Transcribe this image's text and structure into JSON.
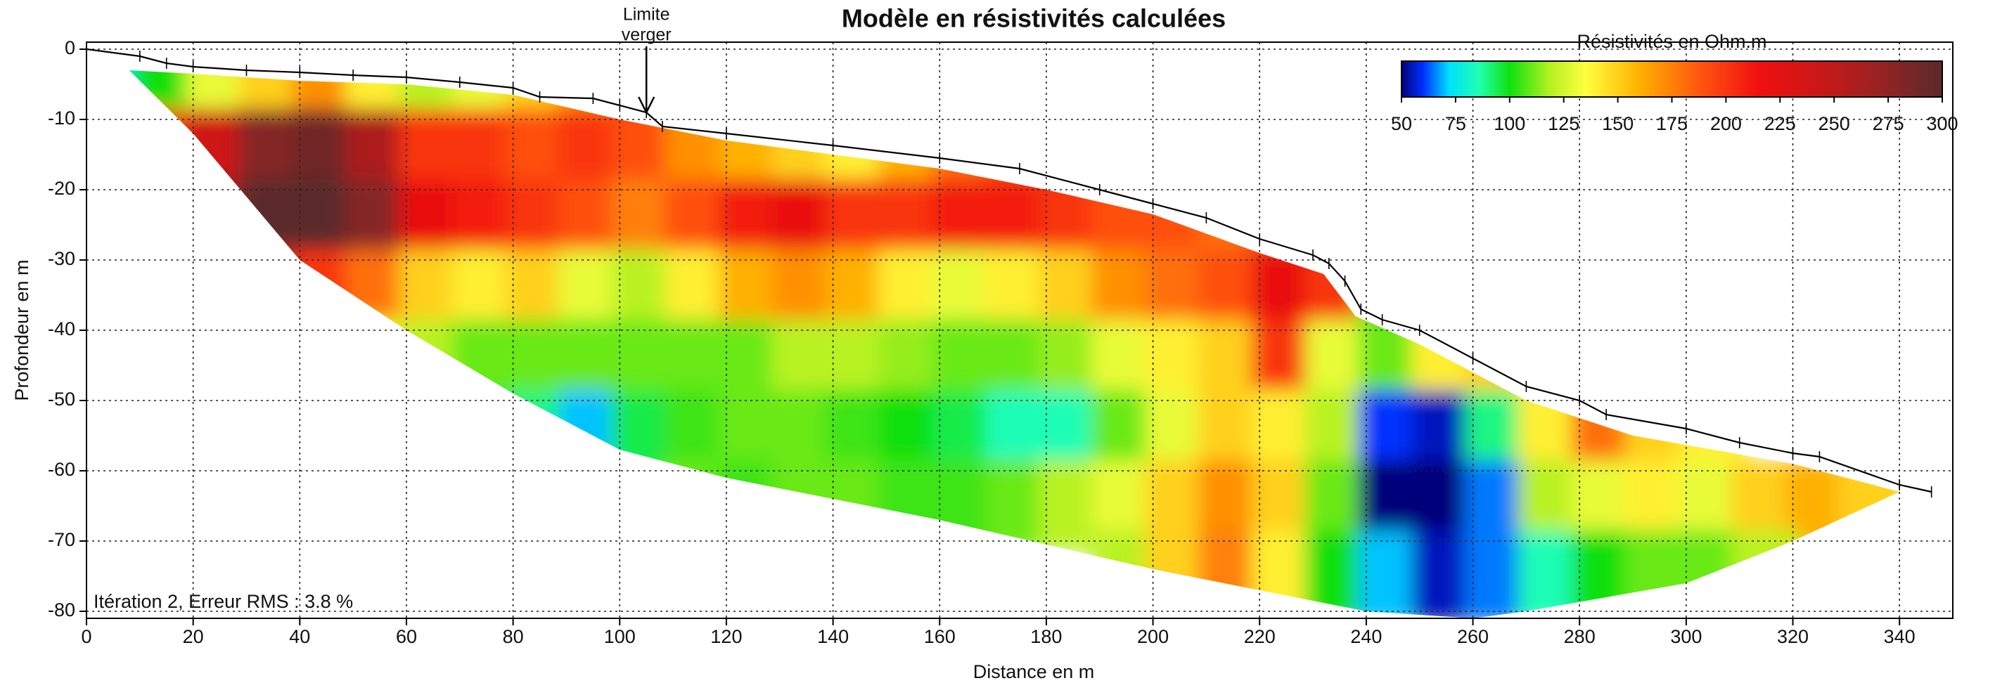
{
  "chart_data": {
    "type": "heatmap",
    "title": "Modèle en résistivités calculées",
    "xlabel": "Distance en m",
    "ylabel": "Profondeur en m",
    "xlim": [
      0,
      350
    ],
    "ylim": [
      -81,
      1
    ],
    "xticks": [
      0,
      20,
      40,
      60,
      80,
      100,
      120,
      140,
      160,
      180,
      200,
      220,
      240,
      260,
      280,
      300,
      320,
      340
    ],
    "yticks": [
      0,
      -10,
      -20,
      -30,
      -40,
      -50,
      -60,
      -70,
      -80
    ],
    "grid": true,
    "colorbar": {
      "title": "Résistivités en Ohm.m",
      "clim": [
        50,
        300
      ],
      "ticks": [
        50,
        75,
        100,
        125,
        150,
        175,
        200,
        225,
        250,
        275,
        300
      ],
      "stops": [
        {
          "value": 50,
          "color": "#00007a"
        },
        {
          "value": 60,
          "color": "#0030ff"
        },
        {
          "value": 72,
          "color": "#00e0ff"
        },
        {
          "value": 86,
          "color": "#20ffb0"
        },
        {
          "value": 100,
          "color": "#10e010"
        },
        {
          "value": 118,
          "color": "#b0f020"
        },
        {
          "value": 135,
          "color": "#ffff40"
        },
        {
          "value": 160,
          "color": "#ffb000"
        },
        {
          "value": 190,
          "color": "#ff5010"
        },
        {
          "value": 215,
          "color": "#f01010"
        },
        {
          "value": 245,
          "color": "#c81818"
        },
        {
          "value": 270,
          "color": "#9a2222"
        },
        {
          "value": 300,
          "color": "#5a2a2a"
        }
      ]
    },
    "topography": {
      "x": [
        0,
        10,
        15,
        20,
        30,
        40,
        50,
        60,
        70,
        80,
        85,
        95,
        100,
        105,
        108,
        120,
        140,
        160,
        175,
        190,
        200,
        210,
        220,
        230,
        233,
        236,
        239,
        243,
        250,
        260,
        270,
        280,
        285,
        300,
        310,
        320,
        325,
        340,
        346
      ],
      "z": [
        0,
        -1,
        -2,
        -2.5,
        -3,
        -3.3,
        -3.7,
        -4,
        -4.7,
        -5.5,
        -6.8,
        -7,
        -8,
        -9,
        -11,
        -12,
        -13.7,
        -15.5,
        -17,
        -20,
        -22,
        -24,
        -27,
        -29.3,
        -30.5,
        -33,
        -37,
        -38.5,
        -40,
        -44,
        -48,
        -50,
        -52,
        -54,
        -56,
        -57.5,
        -58,
        -62,
        -63
      ]
    },
    "section_outline": {
      "x": [
        8,
        20,
        40,
        60,
        80,
        100,
        120,
        140,
        160,
        180,
        200,
        220,
        232,
        238,
        250,
        270,
        290,
        320,
        340,
        320,
        300,
        270,
        260,
        240,
        200,
        160,
        120,
        100,
        80,
        60,
        40,
        20
      ],
      "z": [
        -3,
        -3.5,
        -4.5,
        -5,
        -6.5,
        -10,
        -13,
        -15,
        -17,
        -20,
        -23.5,
        -29,
        -32,
        -38,
        -42,
        -50,
        -55,
        -59,
        -63,
        -70,
        -76,
        -80,
        -81,
        -80,
        -74,
        -67,
        -61,
        -57,
        -49,
        -40,
        -30,
        -12
      ]
    },
    "grid_data": {
      "x": [
        5,
        15,
        25,
        35,
        45,
        55,
        65,
        75,
        85,
        95,
        105,
        115,
        125,
        135,
        145,
        155,
        165,
        175,
        185,
        195,
        205,
        215,
        225,
        235,
        245,
        255,
        265,
        275,
        285,
        295,
        305,
        315,
        325,
        335,
        345
      ],
      "z": [
        -5,
        -15,
        -25,
        -35,
        -45,
        -55,
        -65,
        -75
      ],
      "values": [
        [
          80,
          100,
          130,
          150,
          170,
          140,
          120,
          130,
          150,
          170,
          190,
          null,
          null,
          null,
          null,
          null,
          null,
          null,
          null,
          null,
          null,
          null,
          null,
          null,
          null,
          null,
          null,
          null,
          null,
          null,
          null,
          null,
          null,
          null,
          null
        ],
        [
          null,
          200,
          240,
          280,
          290,
          260,
          200,
          200,
          190,
          200,
          190,
          170,
          160,
          150,
          140,
          160,
          180,
          190,
          200,
          null,
          null,
          null,
          null,
          null,
          null,
          null,
          null,
          null,
          null,
          null,
          null,
          null,
          null,
          null,
          null
        ],
        [
          null,
          null,
          260,
          300,
          300,
          280,
          220,
          210,
          200,
          190,
          175,
          190,
          210,
          220,
          200,
          200,
          210,
          210,
          200,
          190,
          190,
          180,
          190,
          null,
          null,
          null,
          null,
          null,
          null,
          null,
          null,
          null,
          null,
          null,
          null
        ],
        [
          null,
          null,
          null,
          230,
          200,
          180,
          150,
          140,
          150,
          130,
          120,
          140,
          160,
          170,
          160,
          140,
          130,
          140,
          150,
          170,
          180,
          190,
          220,
          200,
          110,
          null,
          null,
          null,
          null,
          null,
          null,
          null,
          null,
          null,
          null
        ],
        [
          null,
          null,
          null,
          null,
          null,
          130,
          120,
          110,
          110,
          110,
          110,
          110,
          110,
          120,
          120,
          115,
          110,
          110,
          115,
          130,
          140,
          150,
          200,
          130,
          110,
          140,
          150,
          null,
          null,
          null,
          null,
          null,
          null,
          null,
          null
        ],
        [
          null,
          null,
          null,
          null,
          null,
          null,
          null,
          105,
          90,
          70,
          95,
          105,
          110,
          110,
          105,
          100,
          95,
          85,
          85,
          110,
          130,
          150,
          140,
          120,
          60,
          55,
          90,
          140,
          180,
          150,
          140,
          null,
          null,
          null,
          null
        ],
        [
          null,
          null,
          null,
          null,
          null,
          null,
          null,
          null,
          null,
          null,
          null,
          110,
          105,
          110,
          110,
          105,
          105,
          110,
          120,
          130,
          150,
          170,
          150,
          110,
          50,
          50,
          65,
          120,
          130,
          140,
          130,
          150,
          160,
          150,
          null
        ],
        [
          null,
          null,
          null,
          null,
          null,
          null,
          null,
          null,
          null,
          null,
          null,
          null,
          null,
          null,
          null,
          null,
          null,
          null,
          null,
          120,
          150,
          175,
          140,
          100,
          70,
          55,
          65,
          85,
          100,
          110,
          110,
          120,
          null,
          null,
          null
        ]
      ]
    },
    "annotation": {
      "lines": [
        "Limite",
        "verger"
      ],
      "x": 105,
      "z": -9
    },
    "note": "Itération 2, Erreur RMS : 3.8 %"
  }
}
